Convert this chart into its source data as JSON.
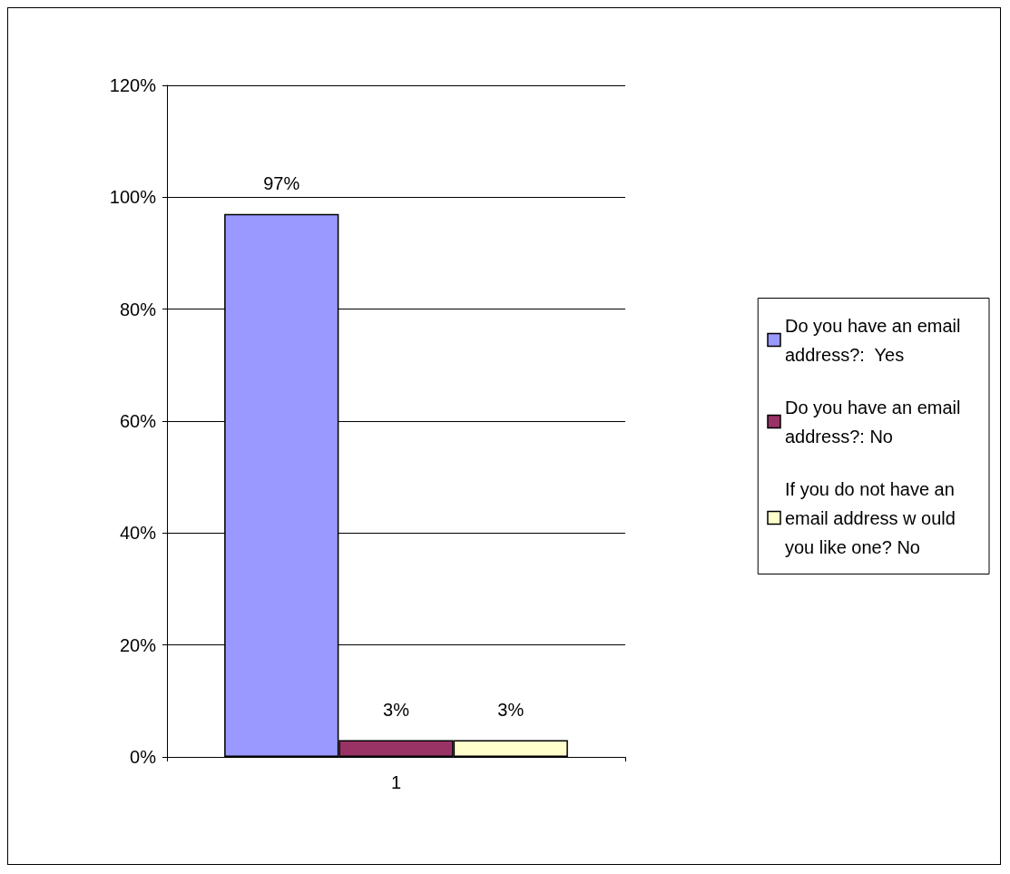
{
  "chart_data": {
    "type": "bar",
    "categories": [
      "1"
    ],
    "series": [
      {
        "name": "Do you have an email address?:  Yes",
        "color": "#9999ff",
        "values": [
          97
        ],
        "value_labels": [
          "97%"
        ]
      },
      {
        "name": "Do you have an email address?: No",
        "color": "#993366",
        "values": [
          3
        ],
        "value_labels": [
          "3%"
        ]
      },
      {
        "name": "If you do not have an email address w ould you like one? No",
        "color": "#ffffcc",
        "values": [
          3
        ],
        "value_labels": [
          "3%"
        ]
      }
    ],
    "ylim": [
      0,
      120
    ],
    "yticks": [
      {
        "value": 0,
        "label": "0%"
      },
      {
        "value": 20,
        "label": "20%"
      },
      {
        "value": 40,
        "label": "40%"
      },
      {
        "value": 60,
        "label": "60%"
      },
      {
        "value": 80,
        "label": "80%"
      },
      {
        "value": 100,
        "label": "100%"
      },
      {
        "value": 120,
        "label": "120%"
      }
    ],
    "grid": "y",
    "legend": "right"
  }
}
